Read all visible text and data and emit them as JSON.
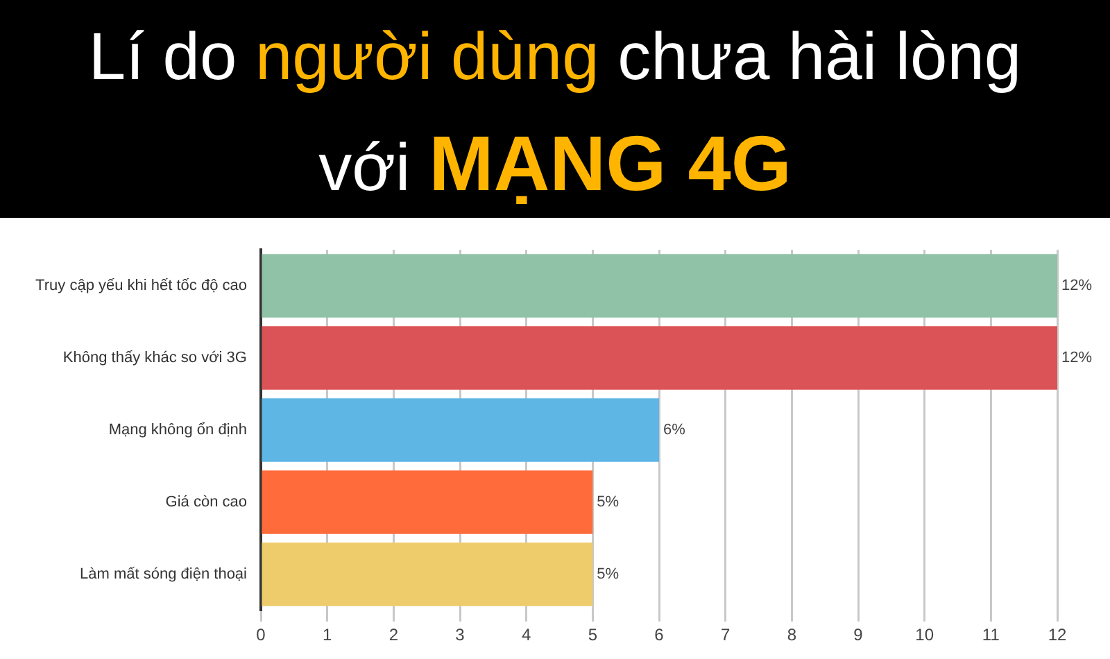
{
  "chart_data": {
    "type": "bar",
    "orientation": "horizontal",
    "title": "Lí do người dùng chưa hài lòng với MẠNG 4G",
    "categories": [
      "Truy cập yếu khi hết tốc độ cao",
      "Không thấy khác so với 3G",
      "Mạng không ổn định",
      "Giá còn cao",
      "Làm mất sóng điện thoại"
    ],
    "values": [
      12,
      12,
      6,
      5,
      5
    ],
    "colors": [
      "#8fc2a6",
      "#db5356",
      "#5db6e4",
      "#ff6b3b",
      "#eecb6b"
    ],
    "value_labels": [
      "12%",
      "12%",
      "6%",
      "5%",
      "5%"
    ],
    "xlim": [
      0,
      12
    ],
    "xticks": [
      0,
      1,
      2,
      3,
      4,
      5,
      6,
      7,
      8,
      9,
      10,
      11,
      12
    ],
    "grid": "x"
  }
}
